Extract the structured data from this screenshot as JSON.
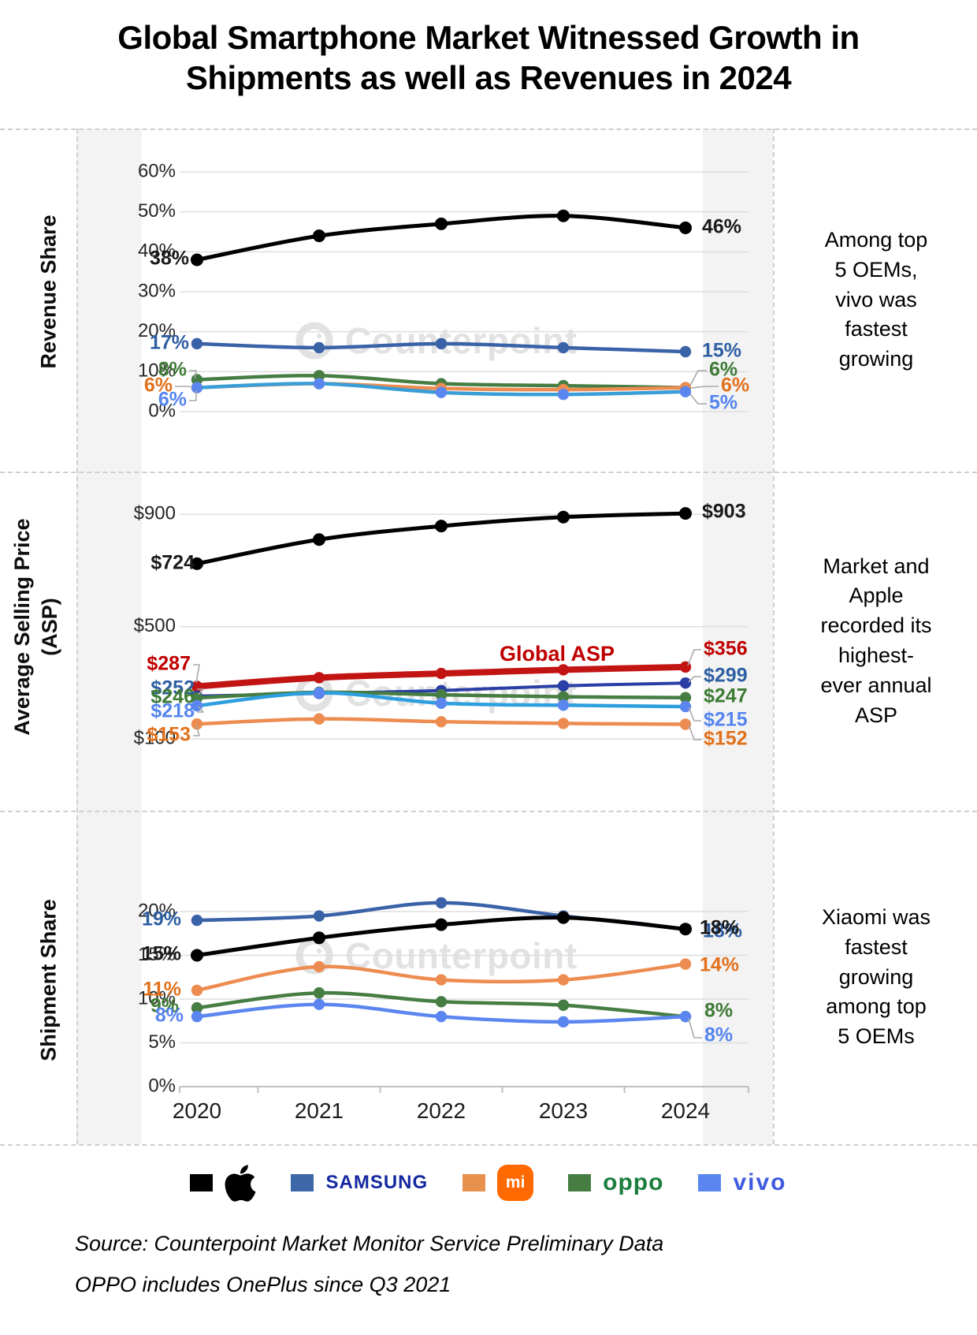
{
  "title": "Global Smartphone Market Witnessed Growth in\nShipments as well as Revenues in 2024",
  "watermark_text": "Counterpoint",
  "x_labels": [
    "2020",
    "2021",
    "2022",
    "2023",
    "2024"
  ],
  "panels": [
    {
      "key": "revenue",
      "axis_title": "Revenue Share",
      "annotation": "Among top\n5 OEMs,\nvivo was\nfastest\ngrowing",
      "y_ticks": [
        "60%",
        "50%",
        "40%",
        "30%",
        "20%",
        "10%",
        "0%"
      ]
    },
    {
      "key": "asp",
      "axis_title": "Average Selling Price\n(ASP)",
      "annotation": "Market and\nApple\nrecorded its\nhighest-\never annual\nASP",
      "y_ticks": [
        "$900",
        "$500",
        "$100"
      ],
      "line_label": "Global ASP"
    },
    {
      "key": "shipment",
      "axis_title": "Shipment Share",
      "annotation": "Xiaomi was\nfastest\ngrowing\namong top\n5 OEMs",
      "y_ticks": [
        "20%",
        "15%",
        "10%",
        "5%",
        "0%"
      ]
    }
  ],
  "chart_data": [
    {
      "type": "line",
      "panel": "revenue",
      "title": "Revenue Share",
      "x": [
        "2020",
        "2021",
        "2022",
        "2023",
        "2024"
      ],
      "ylabel": "Revenue Share",
      "ylim": [
        0,
        60
      ],
      "grid": true,
      "series": [
        {
          "name": "Apple",
          "color": "#000000",
          "label_color": "#1a1a1a",
          "values": [
            38,
            44,
            47,
            49,
            46
          ],
          "left_label": "38%",
          "right_label": "46%"
        },
        {
          "name": "Samsung",
          "color": "#3A62A7",
          "label_color": "#2E5FA3",
          "values": [
            17,
            16,
            17,
            16,
            15
          ],
          "left_label": "17%",
          "right_label": "15%"
        },
        {
          "name": "OPPO",
          "color": "#467D42",
          "label_color": "#3E7B35",
          "values": [
            8,
            9,
            7,
            6.5,
            6
          ],
          "left_label": "8%",
          "right_label": "6%"
        },
        {
          "name": "Xiaomi",
          "color": "#ED8C50",
          "label_color": "#E2711C",
          "values": [
            6,
            7,
            5.8,
            5.5,
            6
          ],
          "left_label": "6%",
          "right_label": "6%"
        },
        {
          "name": "vivo",
          "color": "#399ED7",
          "marker_color": "#5B86F0",
          "label_color": "#5585EE",
          "values": [
            6,
            7,
            4.8,
            4.3,
            5
          ],
          "left_label": "6%",
          "right_label": "5%"
        }
      ]
    },
    {
      "type": "line",
      "panel": "asp",
      "title": "Average Selling Price (ASP)",
      "x": [
        "2020",
        "2021",
        "2022",
        "2023",
        "2024"
      ],
      "ylabel": "Average Selling Price (ASP)",
      "ylim": [
        100,
        1000
      ],
      "grid": true,
      "series": [
        {
          "name": "Apple",
          "color": "#000000",
          "label_color": "#1a1a1a",
          "values": [
            724,
            810,
            858,
            890,
            903
          ],
          "left_label": "$724",
          "right_label": "$903"
        },
        {
          "name": "Global ASP",
          "color": "#C31414",
          "label_color": "#C00000",
          "values": [
            287,
            318,
            333,
            346,
            356
          ],
          "left_label": "$287",
          "right_label": "$356"
        },
        {
          "name": "Samsung",
          "color": "#2A3FA5",
          "label_color": "#2E5FA3",
          "values": [
            252,
            262,
            272,
            289,
            299
          ],
          "left_label": "$252",
          "right_label": "$299"
        },
        {
          "name": "OPPO",
          "color": "#467D42",
          "label_color": "#3E7B35",
          "values": [
            246,
            266,
            257,
            250,
            247
          ],
          "left_label": "$246",
          "right_label": "$247"
        },
        {
          "name": "vivo",
          "color": "#2E9FDE",
          "marker_color": "#5B86F0",
          "label_color": "#5585EE",
          "values": [
            218,
            264,
            227,
            220,
            215
          ],
          "left_label": "$218",
          "right_label": "$215"
        },
        {
          "name": "Xiaomi",
          "color": "#ED8C50",
          "label_color": "#E2711C",
          "values": [
            153,
            171,
            161,
            155,
            152
          ],
          "left_label": "$153",
          "right_label": "$152"
        }
      ]
    },
    {
      "type": "line",
      "panel": "shipment",
      "title": "Shipment Share",
      "x": [
        "2020",
        "2021",
        "2022",
        "2023",
        "2024"
      ],
      "ylabel": "Shipment Share",
      "ylim": [
        0,
        25
      ],
      "grid": true,
      "series": [
        {
          "name": "Samsung",
          "color": "#3A62A7",
          "label_color": "#2E5FA3",
          "values": [
            19,
            19.5,
            21,
            19.5,
            18
          ],
          "left_label": "19%",
          "right_label": "18%"
        },
        {
          "name": "Apple",
          "color": "#000000",
          "label_color": "#1a1a1a",
          "values": [
            15,
            17,
            18.5,
            19.3,
            18
          ],
          "left_label": "15%",
          "right_label": "18%"
        },
        {
          "name": "Xiaomi",
          "color": "#ED8C50",
          "label_color": "#E2711C",
          "values": [
            11,
            13.7,
            12.2,
            12.2,
            14
          ],
          "left_label": "11%",
          "right_label": "14%"
        },
        {
          "name": "OPPO",
          "color": "#467D42",
          "label_color": "#3E7B35",
          "values": [
            9,
            10.7,
            9.7,
            9.3,
            8
          ],
          "left_label": "9%",
          "right_label": "8%"
        },
        {
          "name": "vivo",
          "color": "#5B86F0",
          "label_color": "#5585EE",
          "values": [
            8,
            9.4,
            8,
            7.4,
            8
          ],
          "left_label": "8%",
          "right_label": "8%"
        }
      ]
    }
  ],
  "legend": [
    {
      "name": "Apple",
      "swatch": "#000000",
      "mark_type": "apple-icon"
    },
    {
      "name": "Samsung",
      "swatch": "#3D68A8",
      "mark_type": "wordmark",
      "mark_text": "SAMSUNG",
      "mark_color": "#1428A0",
      "mark_class": "lg-samsung"
    },
    {
      "name": "Xiaomi",
      "swatch": "#E8914F",
      "mark_type": "badge",
      "mark_text": "mi",
      "mark_color": "#FF6900"
    },
    {
      "name": "OPPO",
      "swatch": "#467D42",
      "mark_type": "wordmark",
      "mark_text": "oppo",
      "mark_color": "#1E7E3F",
      "mark_class": "lg-oppo"
    },
    {
      "name": "vivo",
      "swatch": "#5B86F0",
      "mark_type": "wordmark",
      "mark_text": "vivo",
      "mark_color": "#3F5BE0",
      "mark_class": "lg-vivo"
    }
  ],
  "source_line1": "Source: Counterpoint Market Monitor Service Preliminary Data",
  "source_line2": "OPPO includes OnePlus since Q3 2021"
}
